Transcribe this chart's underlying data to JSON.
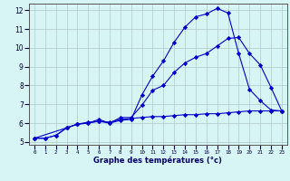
{
  "xlabel": "Graphe des températures (°c)",
  "bg_color": "#d8f5f5",
  "line_color": "#0000cc",
  "grid_color": "#b0c8c8",
  "xmin": 0,
  "xmax": 23,
  "ymin": 5,
  "ymax": 12,
  "line1_x": [
    0,
    1,
    2,
    3,
    4,
    5,
    6,
    7,
    8,
    9,
    10,
    11,
    12,
    13,
    14,
    15,
    16,
    17,
    18,
    19,
    20,
    21,
    22,
    23
  ],
  "line1_y": [
    5.2,
    5.2,
    5.35,
    5.75,
    5.95,
    6.05,
    6.1,
    6.05,
    6.2,
    6.25,
    6.3,
    6.35,
    6.35,
    6.4,
    6.45,
    6.45,
    6.5,
    6.5,
    6.55,
    6.6,
    6.65,
    6.65,
    6.65,
    6.65
  ],
  "line2_x": [
    0,
    1,
    2,
    3,
    4,
    5,
    6,
    7,
    8,
    9,
    10,
    11,
    12,
    13,
    14,
    15,
    16,
    17,
    18,
    19,
    20,
    21,
    22,
    23
  ],
  "line2_y": [
    5.2,
    5.2,
    5.35,
    5.75,
    5.95,
    6.0,
    6.1,
    6.0,
    6.15,
    6.2,
    7.5,
    8.5,
    9.3,
    10.3,
    11.1,
    11.65,
    11.8,
    12.1,
    11.85,
    9.7,
    7.8,
    7.2,
    6.7,
    6.65
  ],
  "line3_x": [
    0,
    3,
    4,
    5,
    6,
    7,
    8,
    9,
    10,
    11,
    12,
    13,
    14,
    15,
    16,
    17,
    18,
    19,
    20,
    21,
    22,
    23
  ],
  "line3_y": [
    5.2,
    5.75,
    5.95,
    6.0,
    6.2,
    6.0,
    6.3,
    6.3,
    6.95,
    7.75,
    8.0,
    8.7,
    9.2,
    9.5,
    9.7,
    10.1,
    10.5,
    10.55,
    9.7,
    9.1,
    7.9,
    6.65
  ]
}
